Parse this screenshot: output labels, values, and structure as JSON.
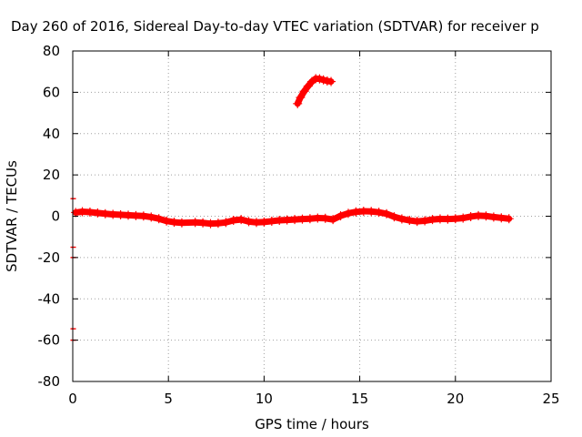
{
  "chart_data": {
    "type": "scatter",
    "title": "Day 260 of 2016, Sidereal Day-to-day VTEC variation (SDTVAR) for receiver p",
    "xlabel": "GPS time / hours",
    "ylabel": "SDTVAR / TECUs",
    "xlim": [
      0,
      25
    ],
    "ylim": [
      -80,
      80
    ],
    "xticks": [
      0,
      5,
      10,
      15,
      20,
      25
    ],
    "yticks": [
      -80,
      -60,
      -40,
      -20,
      0,
      20,
      40,
      60,
      80
    ],
    "grid": true,
    "marker_color": "#ff0000",
    "series": [
      {
        "points": [
          [
            0.15,
            1.8
          ],
          [
            0.5,
            2.2
          ],
          [
            0.9,
            2.0
          ],
          [
            1.3,
            1.6
          ],
          [
            1.7,
            1.2
          ],
          [
            2.1,
            0.9
          ],
          [
            2.5,
            0.7
          ],
          [
            2.9,
            0.5
          ],
          [
            3.3,
            0.3
          ],
          [
            3.7,
            0.1
          ],
          [
            4.1,
            -0.4
          ],
          [
            4.5,
            -1.2
          ],
          [
            4.9,
            -2.3
          ],
          [
            5.3,
            -2.9
          ],
          [
            5.7,
            -3.2
          ],
          [
            6.4,
            -3.0
          ],
          [
            6.8,
            -3.2
          ],
          [
            7.2,
            -3.6
          ],
          [
            7.6,
            -3.4
          ],
          [
            8.0,
            -3.0
          ],
          [
            8.4,
            -2.0
          ],
          [
            8.8,
            -1.6
          ],
          [
            9.2,
            -2.6
          ],
          [
            9.6,
            -3.0
          ],
          [
            10.0,
            -2.8
          ],
          [
            10.4,
            -2.4
          ],
          [
            10.8,
            -2.0
          ],
          [
            11.2,
            -1.8
          ],
          [
            11.6,
            -1.6
          ],
          [
            12.0,
            -1.4
          ],
          [
            12.4,
            -1.2
          ],
          [
            12.8,
            -0.9
          ],
          [
            13.2,
            -1.0
          ],
          [
            13.6,
            -1.6
          ],
          [
            14.0,
            0.2
          ],
          [
            14.4,
            1.4
          ],
          [
            14.8,
            2.1
          ],
          [
            15.2,
            2.4
          ],
          [
            15.6,
            2.3
          ],
          [
            16.0,
            1.9
          ],
          [
            16.4,
            1.2
          ],
          [
            16.8,
            -0.3
          ],
          [
            17.2,
            -1.3
          ],
          [
            17.6,
            -2.0
          ],
          [
            18.0,
            -2.5
          ],
          [
            18.4,
            -2.2
          ],
          [
            18.8,
            -1.6
          ],
          [
            19.2,
            -1.3
          ],
          [
            19.6,
            -1.4
          ],
          [
            20.0,
            -1.2
          ],
          [
            20.4,
            -0.9
          ],
          [
            20.8,
            -0.2
          ],
          [
            21.2,
            0.3
          ],
          [
            21.6,
            0.1
          ],
          [
            22.0,
            -0.4
          ],
          [
            22.4,
            -0.8
          ],
          [
            22.8,
            -1.2
          ]
        ]
      },
      {
        "points": [
          [
            11.75,
            54.5
          ],
          [
            11.9,
            57.5
          ],
          [
            12.1,
            60.5
          ],
          [
            12.3,
            63.0
          ],
          [
            12.5,
            65.2
          ],
          [
            12.7,
            66.6
          ],
          [
            12.9,
            66.5
          ],
          [
            13.1,
            66.0
          ],
          [
            13.3,
            65.5
          ],
          [
            13.5,
            65.2
          ]
        ]
      },
      {
        "points": [
          [
            0.0,
            8.5
          ],
          [
            0.0,
            -15.0
          ],
          [
            0.0,
            -20.0
          ],
          [
            0.0,
            -54.5
          ],
          [
            0.0,
            -60.0
          ]
        ]
      }
    ]
  }
}
